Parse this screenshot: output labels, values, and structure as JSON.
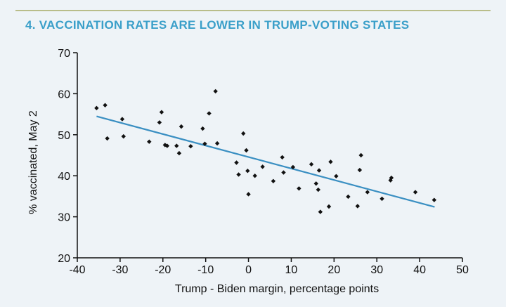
{
  "title": "4.  VACCINATION RATES ARE LOWER IN TRUMP-VOTING STATES",
  "colors": {
    "title": "#3a9fc9",
    "trend": "#3a8fc2",
    "points": "#111111"
  },
  "chart_data": {
    "type": "scatter",
    "title": "4.  VACCINATION RATES ARE LOWER IN TRUMP-VOTING STATES",
    "xlabel": "Trump - Biden margin, percentage points",
    "ylabel": "% vaccinated, May 2",
    "xlim": [
      -40,
      50
    ],
    "ylim": [
      20,
      70
    ],
    "xticks": [
      -40,
      -30,
      -20,
      -10,
      0,
      10,
      20,
      30,
      40,
      50
    ],
    "yticks": [
      20,
      30,
      40,
      50,
      60,
      70
    ],
    "grid": false,
    "trendline": {
      "x": [
        -35.5,
        43.5
      ],
      "y": [
        54.5,
        32.4
      ]
    },
    "points": [
      {
        "x": -35.5,
        "y": 56.5
      },
      {
        "x": -33.5,
        "y": 57.2
      },
      {
        "x": -33.0,
        "y": 49.1
      },
      {
        "x": -29.5,
        "y": 53.8
      },
      {
        "x": -29.2,
        "y": 49.6
      },
      {
        "x": -23.2,
        "y": 48.3
      },
      {
        "x": -20.8,
        "y": 53.0
      },
      {
        "x": -20.3,
        "y": 55.5
      },
      {
        "x": -19.5,
        "y": 47.5
      },
      {
        "x": -19.0,
        "y": 47.3
      },
      {
        "x": -16.8,
        "y": 47.3
      },
      {
        "x": -16.2,
        "y": 45.5
      },
      {
        "x": -15.7,
        "y": 52.0
      },
      {
        "x": -13.5,
        "y": 47.2
      },
      {
        "x": -10.7,
        "y": 51.5
      },
      {
        "x": -10.2,
        "y": 47.8
      },
      {
        "x": -9.2,
        "y": 55.2
      },
      {
        "x": -7.7,
        "y": 60.6
      },
      {
        "x": -7.3,
        "y": 47.9
      },
      {
        "x": -2.8,
        "y": 43.2
      },
      {
        "x": -2.3,
        "y": 40.3
      },
      {
        "x": -1.2,
        "y": 50.3
      },
      {
        "x": -0.5,
        "y": 46.2
      },
      {
        "x": -0.2,
        "y": 41.2
      },
      {
        "x": 0.0,
        "y": 35.5
      },
      {
        "x": 1.5,
        "y": 40.0
      },
      {
        "x": 3.3,
        "y": 42.2
      },
      {
        "x": 5.8,
        "y": 38.7
      },
      {
        "x": 7.9,
        "y": 44.5
      },
      {
        "x": 8.2,
        "y": 40.8
      },
      {
        "x": 10.4,
        "y": 42.1
      },
      {
        "x": 11.8,
        "y": 36.9
      },
      {
        "x": 14.7,
        "y": 42.8
      },
      {
        "x": 15.8,
        "y": 38.1
      },
      {
        "x": 16.3,
        "y": 36.6
      },
      {
        "x": 16.5,
        "y": 41.3
      },
      {
        "x": 16.8,
        "y": 31.2
      },
      {
        "x": 18.8,
        "y": 32.5
      },
      {
        "x": 19.2,
        "y": 43.4
      },
      {
        "x": 20.5,
        "y": 39.9
      },
      {
        "x": 23.3,
        "y": 34.9
      },
      {
        "x": 25.5,
        "y": 32.6
      },
      {
        "x": 26.0,
        "y": 41.4
      },
      {
        "x": 26.3,
        "y": 45.0
      },
      {
        "x": 27.8,
        "y": 36.0
      },
      {
        "x": 31.2,
        "y": 34.4
      },
      {
        "x": 33.2,
        "y": 38.9
      },
      {
        "x": 33.4,
        "y": 39.5
      },
      {
        "x": 39.0,
        "y": 36.0
      },
      {
        "x": 43.4,
        "y": 34.1
      }
    ]
  }
}
